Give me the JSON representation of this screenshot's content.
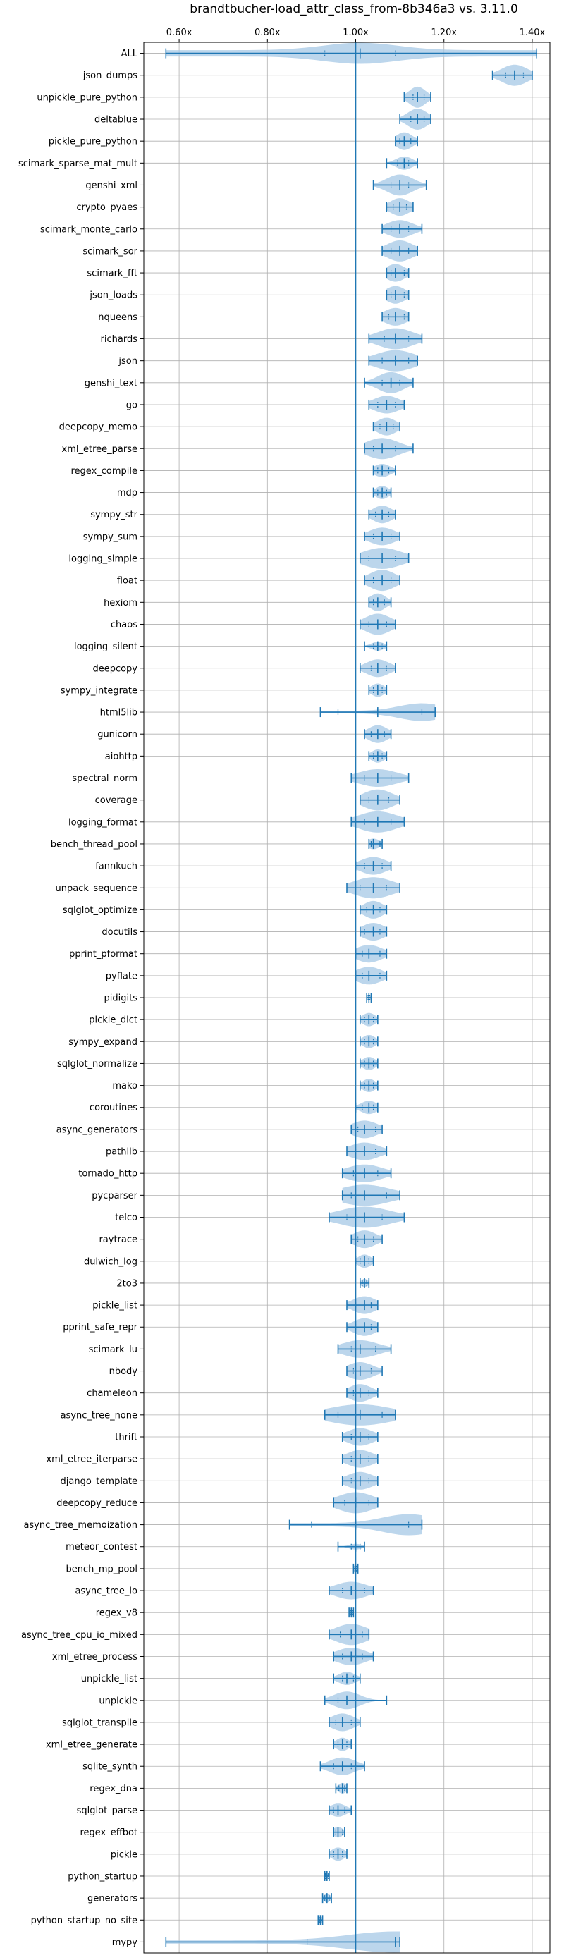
{
  "chart_data": {
    "type": "violin",
    "title": "brandtbucher-load_attr_class_from-8b346a3 vs. 3.11.0",
    "xlabel": "",
    "ylabel": "",
    "xlim": [
      0.52,
      1.44
    ],
    "xticks": [
      0.6,
      0.8,
      1.0,
      1.2,
      1.4
    ],
    "xtick_labels": [
      "0.60x",
      "0.80x",
      "1.00x",
      "1.20x",
      "1.40x"
    ],
    "xaxis_position": "top",
    "reference_line": 1.0,
    "grid": true,
    "color": "#1f77b4",
    "fill_color": "#a6c8e6",
    "benchmarks": [
      {
        "name": "ALL",
        "median": 1.01,
        "min": 0.57,
        "max": 1.41,
        "q1": 0.93,
        "q3": 1.09,
        "hw": 0.03
      },
      {
        "name": "json_dumps",
        "median": 1.36,
        "min": 1.31,
        "max": 1.4,
        "q1": 1.34,
        "q3": 1.38,
        "hw": 0.035
      },
      {
        "name": "unpickle_pure_python",
        "median": 1.14,
        "min": 1.11,
        "max": 1.17,
        "q1": 1.13,
        "q3": 1.155,
        "hw": 0.025
      },
      {
        "name": "deltablue",
        "median": 1.14,
        "min": 1.1,
        "max": 1.17,
        "q1": 1.125,
        "q3": 1.155,
        "hw": 0.025
      },
      {
        "name": "pickle_pure_python",
        "median": 1.11,
        "min": 1.09,
        "max": 1.14,
        "q1": 1.1,
        "q3": 1.125,
        "hw": 0.02
      },
      {
        "name": "scimark_sparse_mat_mult",
        "median": 1.11,
        "min": 1.07,
        "max": 1.14,
        "q1": 1.095,
        "q3": 1.12,
        "hw": 0.015
      },
      {
        "name": "genshi_xml",
        "median": 1.1,
        "min": 1.04,
        "max": 1.16,
        "q1": 1.08,
        "q3": 1.12,
        "hw": 0.025
      },
      {
        "name": "crypto_pyaes",
        "median": 1.1,
        "min": 1.07,
        "max": 1.13,
        "q1": 1.085,
        "q3": 1.115,
        "hw": 0.02
      },
      {
        "name": "scimark_monte_carlo",
        "median": 1.1,
        "min": 1.06,
        "max": 1.15,
        "q1": 1.08,
        "q3": 1.12,
        "hw": 0.02
      },
      {
        "name": "scimark_sor",
        "median": 1.1,
        "min": 1.06,
        "max": 1.14,
        "q1": 1.08,
        "q3": 1.12,
        "hw": 0.025
      },
      {
        "name": "scimark_fft",
        "median": 1.09,
        "min": 1.07,
        "max": 1.12,
        "q1": 1.08,
        "q3": 1.11,
        "hw": 0.02
      },
      {
        "name": "json_loads",
        "median": 1.09,
        "min": 1.07,
        "max": 1.12,
        "q1": 1.08,
        "q3": 1.11,
        "hw": 0.02
      },
      {
        "name": "nqueens",
        "median": 1.09,
        "min": 1.06,
        "max": 1.12,
        "q1": 1.075,
        "q3": 1.11,
        "hw": 0.02
      },
      {
        "name": "richards",
        "median": 1.09,
        "min": 1.03,
        "max": 1.15,
        "q1": 1.065,
        "q3": 1.12,
        "hw": 0.03
      },
      {
        "name": "json",
        "median": 1.09,
        "min": 1.03,
        "max": 1.14,
        "q1": 1.06,
        "q3": 1.12,
        "hw": 0.03
      },
      {
        "name": "genshi_text",
        "median": 1.08,
        "min": 1.02,
        "max": 1.13,
        "q1": 1.06,
        "q3": 1.1,
        "hw": 0.025
      },
      {
        "name": "go",
        "median": 1.07,
        "min": 1.03,
        "max": 1.11,
        "q1": 1.05,
        "q3": 1.09,
        "hw": 0.02
      },
      {
        "name": "deepcopy_memo",
        "median": 1.07,
        "min": 1.04,
        "max": 1.1,
        "q1": 1.055,
        "q3": 1.085,
        "hw": 0.02
      },
      {
        "name": "xml_etree_parse",
        "median": 1.06,
        "min": 1.02,
        "max": 1.13,
        "q1": 1.04,
        "q3": 1.09,
        "hw": 0.03
      },
      {
        "name": "regex_compile",
        "median": 1.06,
        "min": 1.04,
        "max": 1.09,
        "q1": 1.05,
        "q3": 1.075,
        "hw": 0.015
      },
      {
        "name": "mdp",
        "median": 1.06,
        "min": 1.04,
        "max": 1.08,
        "q1": 1.05,
        "q3": 1.07,
        "hw": 0.015
      },
      {
        "name": "sympy_str",
        "median": 1.06,
        "min": 1.03,
        "max": 1.09,
        "q1": 1.045,
        "q3": 1.075,
        "hw": 0.02
      },
      {
        "name": "sympy_sum",
        "median": 1.06,
        "min": 1.02,
        "max": 1.1,
        "q1": 1.04,
        "q3": 1.08,
        "hw": 0.02
      },
      {
        "name": "logging_simple",
        "median": 1.06,
        "min": 1.01,
        "max": 1.12,
        "q1": 1.03,
        "q3": 1.09,
        "hw": 0.03
      },
      {
        "name": "float",
        "median": 1.06,
        "min": 1.02,
        "max": 1.1,
        "q1": 1.04,
        "q3": 1.08,
        "hw": 0.025
      },
      {
        "name": "hexiom",
        "median": 1.05,
        "min": 1.03,
        "max": 1.08,
        "q1": 1.04,
        "q3": 1.065,
        "hw": 0.02
      },
      {
        "name": "chaos",
        "median": 1.05,
        "min": 1.01,
        "max": 1.09,
        "q1": 1.03,
        "q3": 1.07,
        "hw": 0.025
      },
      {
        "name": "logging_silent",
        "median": 1.05,
        "min": 1.02,
        "max": 1.07,
        "q1": 1.04,
        "q3": 1.06,
        "hw": 0.01
      },
      {
        "name": "deepcopy",
        "median": 1.05,
        "min": 1.01,
        "max": 1.09,
        "q1": 1.035,
        "q3": 1.07,
        "hw": 0.02
      },
      {
        "name": "sympy_integrate",
        "median": 1.05,
        "min": 1.03,
        "max": 1.07,
        "q1": 1.04,
        "q3": 1.06,
        "hw": 0.015
      },
      {
        "name": "html5lib",
        "median": 1.05,
        "min": 0.92,
        "max": 1.18,
        "q1": 0.96,
        "q3": 1.15,
        "hw": 0.02
      },
      {
        "name": "gunicorn",
        "median": 1.05,
        "min": 1.02,
        "max": 1.08,
        "q1": 1.035,
        "q3": 1.065,
        "hw": 0.02
      },
      {
        "name": "aiohttp",
        "median": 1.05,
        "min": 1.03,
        "max": 1.07,
        "q1": 1.04,
        "q3": 1.06,
        "hw": 0.015
      },
      {
        "name": "spectral_norm",
        "median": 1.05,
        "min": 0.99,
        "max": 1.12,
        "q1": 1.02,
        "q3": 1.08,
        "hw": 0.02
      },
      {
        "name": "coverage",
        "median": 1.05,
        "min": 1.01,
        "max": 1.1,
        "q1": 1.03,
        "q3": 1.075,
        "hw": 0.025
      },
      {
        "name": "logging_format",
        "median": 1.05,
        "min": 0.99,
        "max": 1.11,
        "q1": 1.02,
        "q3": 1.08,
        "hw": 0.03
      },
      {
        "name": "bench_thread_pool",
        "median": 1.04,
        "min": 1.03,
        "max": 1.06,
        "q1": 1.035,
        "q3": 1.055,
        "hw": 0.012
      },
      {
        "name": "fannkuch",
        "median": 1.04,
        "min": 1.0,
        "max": 1.08,
        "q1": 1.02,
        "q3": 1.06,
        "hw": 0.02
      },
      {
        "name": "unpack_sequence",
        "median": 1.04,
        "min": 0.98,
        "max": 1.1,
        "q1": 1.01,
        "q3": 1.07,
        "hw": 0.025
      },
      {
        "name": "sqlglot_optimize",
        "median": 1.04,
        "min": 1.01,
        "max": 1.07,
        "q1": 1.025,
        "q3": 1.055,
        "hw": 0.02
      },
      {
        "name": "docutils",
        "median": 1.04,
        "min": 1.01,
        "max": 1.07,
        "q1": 1.02,
        "q3": 1.055,
        "hw": 0.02
      },
      {
        "name": "pprint_pformat",
        "median": 1.03,
        "min": 1.0,
        "max": 1.07,
        "q1": 1.015,
        "q3": 1.055,
        "hw": 0.02
      },
      {
        "name": "pyflate",
        "median": 1.03,
        "min": 1.0,
        "max": 1.07,
        "q1": 1.015,
        "q3": 1.055,
        "hw": 0.02
      },
      {
        "name": "pidigits",
        "median": 1.03,
        "min": 1.025,
        "max": 1.035,
        "q1": 1.028,
        "q3": 1.032,
        "hw": 0.004
      },
      {
        "name": "pickle_dict",
        "median": 1.03,
        "min": 1.01,
        "max": 1.05,
        "q1": 1.02,
        "q3": 1.04,
        "hw": 0.015
      },
      {
        "name": "sympy_expand",
        "median": 1.03,
        "min": 1.01,
        "max": 1.05,
        "q1": 1.02,
        "q3": 1.04,
        "hw": 0.015
      },
      {
        "name": "sqlglot_normalize",
        "median": 1.03,
        "min": 1.01,
        "max": 1.05,
        "q1": 1.02,
        "q3": 1.04,
        "hw": 0.015
      },
      {
        "name": "mako",
        "median": 1.03,
        "min": 1.01,
        "max": 1.05,
        "q1": 1.02,
        "q3": 1.04,
        "hw": 0.015
      },
      {
        "name": "coroutines",
        "median": 1.03,
        "min": 1.0,
        "max": 1.05,
        "q1": 1.015,
        "q3": 1.04,
        "hw": 0.015
      },
      {
        "name": "async_generators",
        "median": 1.02,
        "min": 0.99,
        "max": 1.06,
        "q1": 1.005,
        "q3": 1.045,
        "hw": 0.02
      },
      {
        "name": "pathlib",
        "median": 1.02,
        "min": 0.98,
        "max": 1.07,
        "q1": 1.0,
        "q3": 1.045,
        "hw": 0.02
      },
      {
        "name": "tornado_http",
        "median": 1.02,
        "min": 0.97,
        "max": 1.08,
        "q1": 0.995,
        "q3": 1.05,
        "hw": 0.02
      },
      {
        "name": "pycparser",
        "median": 1.02,
        "min": 0.97,
        "max": 1.1,
        "q1": 0.99,
        "q3": 1.07,
        "hw": 0.03
      },
      {
        "name": "telco",
        "median": 1.02,
        "min": 0.94,
        "max": 1.11,
        "q1": 0.98,
        "q3": 1.06,
        "hw": 0.03
      },
      {
        "name": "raytrace",
        "median": 1.02,
        "min": 0.99,
        "max": 1.06,
        "q1": 1.005,
        "q3": 1.04,
        "hw": 0.02
      },
      {
        "name": "dulwich_log",
        "median": 1.02,
        "min": 1.0,
        "max": 1.04,
        "q1": 1.01,
        "q3": 1.03,
        "hw": 0.015
      },
      {
        "name": "2to3",
        "median": 1.02,
        "min": 1.01,
        "max": 1.03,
        "q1": 1.015,
        "q3": 1.025,
        "hw": 0.01
      },
      {
        "name": "pickle_list",
        "median": 1.02,
        "min": 0.98,
        "max": 1.05,
        "q1": 1.0,
        "q3": 1.035,
        "hw": 0.02
      },
      {
        "name": "pprint_safe_repr",
        "median": 1.02,
        "min": 0.98,
        "max": 1.05,
        "q1": 1.0,
        "q3": 1.035,
        "hw": 0.02
      },
      {
        "name": "scimark_lu",
        "median": 1.01,
        "min": 0.96,
        "max": 1.08,
        "q1": 0.99,
        "q3": 1.045,
        "hw": 0.02
      },
      {
        "name": "nbody",
        "median": 1.01,
        "min": 0.98,
        "max": 1.06,
        "q1": 0.995,
        "q3": 1.035,
        "hw": 0.02
      },
      {
        "name": "chameleon",
        "median": 1.01,
        "min": 0.98,
        "max": 1.05,
        "q1": 0.995,
        "q3": 1.03,
        "hw": 0.02
      },
      {
        "name": "async_tree_none",
        "median": 1.01,
        "min": 0.93,
        "max": 1.09,
        "q1": 0.96,
        "q3": 1.06,
        "hw": 0.03
      },
      {
        "name": "thrift",
        "median": 1.01,
        "min": 0.97,
        "max": 1.05,
        "q1": 0.99,
        "q3": 1.03,
        "hw": 0.02
      },
      {
        "name": "xml_etree_iterparse",
        "median": 1.01,
        "min": 0.97,
        "max": 1.05,
        "q1": 0.99,
        "q3": 1.03,
        "hw": 0.02
      },
      {
        "name": "django_template",
        "median": 1.01,
        "min": 0.97,
        "max": 1.05,
        "q1": 0.99,
        "q3": 1.03,
        "hw": 0.02
      },
      {
        "name": "deepcopy_reduce",
        "median": 1.0,
        "min": 0.95,
        "max": 1.05,
        "q1": 0.975,
        "q3": 1.03,
        "hw": 0.025
      },
      {
        "name": "async_tree_memoization",
        "median": 1.0,
        "min": 0.85,
        "max": 1.15,
        "q1": 0.9,
        "q3": 1.12,
        "hw": 0.03
      },
      {
        "name": "meteor_contest",
        "median": 1.0,
        "min": 0.96,
        "max": 1.02,
        "q1": 0.99,
        "q3": 1.01,
        "hw": 0.006
      },
      {
        "name": "bench_mp_pool",
        "median": 1.0,
        "min": 0.995,
        "max": 1.005,
        "q1": 0.998,
        "q3": 1.002,
        "hw": 0.004
      },
      {
        "name": "async_tree_io",
        "median": 0.99,
        "min": 0.94,
        "max": 1.04,
        "q1": 0.97,
        "q3": 1.02,
        "hw": 0.02
      },
      {
        "name": "regex_v8",
        "median": 0.99,
        "min": 0.985,
        "max": 0.995,
        "q1": 0.988,
        "q3": 0.993,
        "hw": 0.006
      },
      {
        "name": "async_tree_cpu_io_mixed",
        "median": 0.99,
        "min": 0.94,
        "max": 1.03,
        "q1": 0.965,
        "q3": 1.015,
        "hw": 0.025
      },
      {
        "name": "xml_etree_process",
        "median": 0.99,
        "min": 0.95,
        "max": 1.04,
        "q1": 0.97,
        "q3": 1.015,
        "hw": 0.02
      },
      {
        "name": "unpickle_list",
        "median": 0.98,
        "min": 0.95,
        "max": 1.01,
        "q1": 0.97,
        "q3": 0.995,
        "hw": 0.015
      },
      {
        "name": "unpickle",
        "median": 0.98,
        "min": 0.93,
        "max": 1.07,
        "q1": 0.96,
        "q3": 1.0,
        "hw": 0.02
      },
      {
        "name": "sqlglot_transpile",
        "median": 0.97,
        "min": 0.94,
        "max": 1.01,
        "q1": 0.955,
        "q3": 0.99,
        "hw": 0.02
      },
      {
        "name": "xml_etree_generate",
        "median": 0.97,
        "min": 0.95,
        "max": 0.99,
        "q1": 0.96,
        "q3": 0.98,
        "hw": 0.015
      },
      {
        "name": "sqlite_synth",
        "median": 0.97,
        "min": 0.92,
        "max": 1.02,
        "q1": 0.95,
        "q3": 0.99,
        "hw": 0.02
      },
      {
        "name": "regex_dna",
        "median": 0.97,
        "min": 0.955,
        "max": 0.98,
        "q1": 0.962,
        "q3": 0.975,
        "hw": 0.012
      },
      {
        "name": "sqlglot_parse",
        "median": 0.96,
        "min": 0.94,
        "max": 0.99,
        "q1": 0.95,
        "q3": 0.975,
        "hw": 0.015
      },
      {
        "name": "regex_effbot",
        "median": 0.96,
        "min": 0.95,
        "max": 0.975,
        "q1": 0.955,
        "q3": 0.97,
        "hw": 0.012
      },
      {
        "name": "pickle",
        "median": 0.96,
        "min": 0.94,
        "max": 0.98,
        "q1": 0.95,
        "q3": 0.97,
        "hw": 0.015
      },
      {
        "name": "python_startup",
        "median": 0.935,
        "min": 0.93,
        "max": 0.94,
        "q1": 0.932,
        "q3": 0.938,
        "hw": 0.006
      },
      {
        "name": "generators",
        "median": 0.935,
        "min": 0.925,
        "max": 0.945,
        "q1": 0.93,
        "q3": 0.94,
        "hw": 0.01
      },
      {
        "name": "python_startup_no_site",
        "median": 0.92,
        "min": 0.915,
        "max": 0.925,
        "q1": 0.918,
        "q3": 0.922,
        "hw": 0.006
      },
      {
        "name": "mypy",
        "median": 1.09,
        "min": 0.57,
        "max": 1.1,
        "q1": 0.89,
        "q3": 1.09,
        "hw": 0.025
      }
    ]
  }
}
